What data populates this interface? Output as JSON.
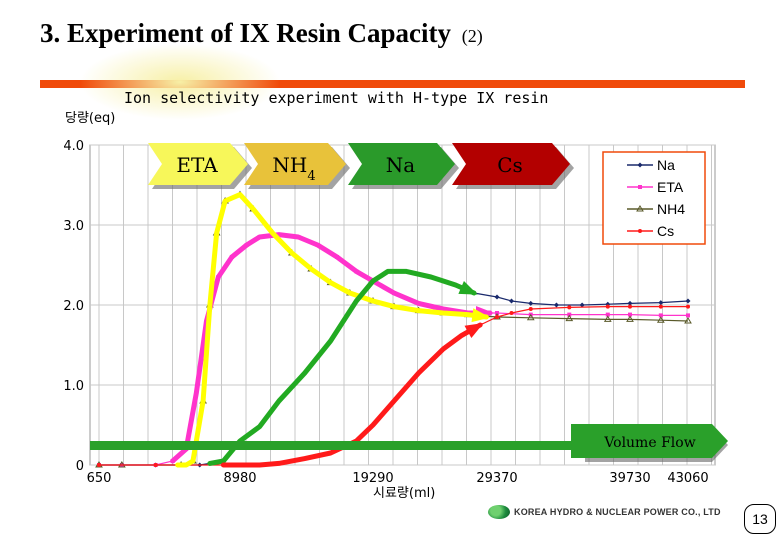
{
  "slide": {
    "title": "3. Experiment of  IX Resin Capacity",
    "title_suffix": "(2)",
    "page_number": "13",
    "footer_logo": "KOREA HYDRO & NUCLEAR POWER CO., LTD",
    "accent_color": "#f04a0a",
    "highlight_color": "#f7f0a6"
  },
  "chart_data": {
    "type": "line",
    "title": "Ion selectivity experiment with H-type IX resin",
    "ylabel": "당량(eq)",
    "xlabel": "시료량(ml)",
    "ylim": [
      0,
      4.0
    ],
    "y_ticks": [
      "4.0",
      "3.0",
      "2.0",
      "1.0",
      "0"
    ],
    "x_tick_labels": [
      "650",
      "8980",
      "19290",
      "29370",
      "39730",
      "43060"
    ],
    "x_tick_values": [
      650,
      8980,
      19290,
      29370,
      39730,
      43060
    ],
    "xlim": [
      650,
      43060
    ],
    "grid": true,
    "legend_position": "top-right",
    "series": [
      {
        "name": "Na",
        "color": "#1a2a6c",
        "marker": "diamond",
        "x": [
          650,
          4000,
          6600,
          7200,
          8000,
          8980,
          10500,
          12000,
          14000,
          16000,
          18000,
          19290,
          20500,
          22000,
          24000,
          26000,
          27500,
          29370,
          30500,
          32000,
          34000,
          36000,
          38000,
          39730,
          41500,
          43060
        ],
        "y": [
          0,
          0,
          0,
          0.02,
          0.05,
          0.3,
          0.48,
          0.8,
          1.15,
          1.55,
          2.05,
          2.3,
          2.42,
          2.42,
          2.35,
          2.25,
          2.15,
          2.1,
          2.05,
          2.02,
          2.0,
          2.0,
          2.01,
          2.02,
          2.03,
          2.05
        ]
      },
      {
        "name": "ETA",
        "color": "#ff33cc",
        "marker": "square",
        "x": [
          650,
          2000,
          4000,
          5000,
          5800,
          6400,
          7000,
          7700,
          8500,
          9500,
          10500,
          12000,
          13500,
          15000,
          16500,
          18000,
          19290,
          21000,
          23000,
          25000,
          27000,
          29370,
          32000,
          35000,
          38000,
          39730,
          41500,
          43060
        ],
        "y": [
          0,
          0,
          0,
          0.05,
          0.2,
          0.9,
          1.8,
          2.35,
          2.6,
          2.75,
          2.85,
          2.88,
          2.85,
          2.75,
          2.6,
          2.42,
          2.3,
          2.15,
          2.02,
          1.95,
          1.9,
          1.9,
          1.88,
          1.88,
          1.88,
          1.88,
          1.87,
          1.87
        ]
      },
      {
        "name": "NH4",
        "color": "#5a5a2a",
        "marker": "triangle",
        "x": [
          650,
          2000,
          5500,
          6200,
          6800,
          7200,
          7600,
          8100,
          8980,
          10000,
          11500,
          13000,
          14500,
          16000,
          17500,
          19290,
          21000,
          23000,
          25000,
          27000,
          29370,
          32000,
          35000,
          38000,
          39730,
          41500,
          43060
        ],
        "y": [
          0,
          0,
          0,
          0.05,
          0.8,
          2.0,
          2.9,
          3.3,
          3.38,
          3.2,
          2.9,
          2.65,
          2.45,
          2.28,
          2.15,
          2.05,
          1.98,
          1.93,
          1.9,
          1.88,
          1.85,
          1.84,
          1.83,
          1.82,
          1.82,
          1.81,
          1.8
        ]
      },
      {
        "name": "Cs",
        "color": "#ff1a1a",
        "marker": "circle",
        "x": [
          650,
          4000,
          8000,
          8980,
          10500,
          12000,
          14000,
          16000,
          18000,
          19290,
          21000,
          23000,
          25000,
          26500,
          28000,
          29370,
          30500,
          32000,
          35000,
          38000,
          39730,
          41500,
          43060
        ],
        "y": [
          0,
          0,
          0,
          0,
          0,
          0.02,
          0.08,
          0.15,
          0.3,
          0.5,
          0.8,
          1.15,
          1.45,
          1.62,
          1.75,
          1.85,
          1.9,
          1.95,
          1.97,
          1.98,
          1.98,
          1.98,
          1.98
        ]
      }
    ],
    "overlay_arrows": [
      {
        "label": "ETA",
        "fill": "#f7f75a"
      },
      {
        "label": "NH4",
        "fill": "#e8c23a"
      },
      {
        "label": "Na",
        "fill": "#2a9a2a"
      },
      {
        "label": "Cs",
        "fill": "#b30000"
      }
    ],
    "flow_arrow_label": "Volume Flow",
    "flow_arrow_color": "#2aa02a",
    "highlight_curves": [
      {
        "color": "#ff33cc",
        "x": [
          5000,
          5800,
          6400,
          7000,
          7700,
          8500,
          9500,
          10500,
          12000,
          13500,
          15000,
          16500,
          18000,
          19290,
          21000,
          23000,
          25000,
          27000,
          28800
        ],
        "y": [
          0.05,
          0.2,
          0.9,
          1.8,
          2.35,
          2.6,
          2.75,
          2.85,
          2.88,
          2.85,
          2.75,
          2.6,
          2.42,
          2.3,
          2.15,
          2.02,
          1.95,
          1.9,
          1.9
        ]
      },
      {
        "color": "#ffff00",
        "x": [
          5300,
          5800,
          6200,
          6800,
          7200,
          7600,
          8100,
          8980,
          10000,
          11500,
          13000,
          14500,
          16000,
          17500,
          19290,
          21000,
          23000,
          25000,
          27000,
          28500
        ],
        "y": [
          0,
          0,
          0.05,
          0.8,
          2.0,
          2.9,
          3.3,
          3.38,
          3.2,
          2.9,
          2.65,
          2.45,
          2.28,
          2.15,
          2.05,
          1.98,
          1.93,
          1.9,
          1.88,
          1.85
        ]
      },
      {
        "color": "#22aa22",
        "x": [
          7200,
          8000,
          8980,
          10500,
          12000,
          14000,
          16000,
          18000,
          19290,
          20500,
          22000,
          24000,
          26000,
          27500
        ],
        "y": [
          0.02,
          0.05,
          0.3,
          0.48,
          0.8,
          1.15,
          1.55,
          2.05,
          2.3,
          2.42,
          2.42,
          2.35,
          2.25,
          2.15
        ]
      },
      {
        "color": "#ff1a1a",
        "x": [
          8000,
          8980,
          10500,
          12000,
          14000,
          16000,
          18000,
          19290,
          21000,
          23000,
          25000,
          26500,
          28000
        ],
        "y": [
          0,
          0,
          0,
          0.02,
          0.08,
          0.15,
          0.3,
          0.5,
          0.8,
          1.15,
          1.45,
          1.62,
          1.75
        ]
      }
    ]
  }
}
